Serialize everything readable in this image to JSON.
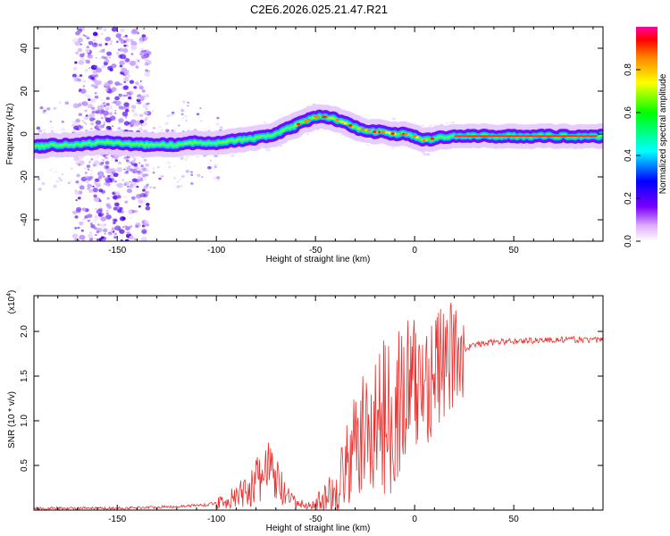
{
  "title": "C2E6.2026.025.21.47.R21",
  "chart_data": [
    {
      "type": "heatmap",
      "xlabel": "Height of straight line (km)",
      "ylabel": "Frequency (Hz)",
      "xlim": [
        -192,
        95
      ],
      "ylim": [
        -50,
        50
      ],
      "xticks": [
        "-150",
        "-100",
        "-50",
        "0",
        "50"
      ],
      "yticks": [
        "-40",
        "-20",
        "0",
        "20",
        "40"
      ],
      "colorbar": {
        "label": "Normalized spectral amplitude",
        "range": [
          0,
          1
        ],
        "ticks": [
          "0.0",
          "0.2",
          "0.4",
          "0.6",
          "0.8"
        ]
      },
      "ridge": {
        "x": [
          -192,
          -180,
          -170,
          -160,
          -150,
          -140,
          -130,
          -120,
          -110,
          -100,
          -90,
          -80,
          -70,
          -60,
          -55,
          -50,
          -45,
          -40,
          -35,
          -30,
          -25,
          -20,
          -15,
          -10,
          -5,
          0,
          5,
          10,
          20,
          40,
          60,
          80,
          95
        ],
        "y": [
          -6,
          -5,
          -5,
          -4,
          -4,
          -5,
          -5,
          -5,
          -4,
          -4,
          -3,
          -2,
          0,
          4,
          6,
          8,
          8,
          7,
          5,
          3,
          2,
          1,
          1,
          0,
          0,
          -1,
          -3,
          -2,
          -1,
          -1,
          -1,
          -1,
          -1
        ]
      },
      "scatter_cloud": {
        "x_range": [
          -172,
          -134
        ],
        "y_range": [
          -50,
          50
        ]
      }
    },
    {
      "type": "line",
      "xlabel": "Height of straight line (km)",
      "ylabel": "SNR (10 * v/v)",
      "scale_label": "(x10",
      "scale_exp": "4",
      "xlim": [
        -192,
        95
      ],
      "ylim": [
        0,
        2.4
      ],
      "xticks": [
        "-150",
        "-100",
        "-50",
        "0",
        "50"
      ],
      "yticks": [
        "0.5",
        "1.0",
        "1.5",
        "2.0"
      ],
      "series": [
        {
          "name": "SNR",
          "color": "#e8302e",
          "envelope": {
            "x": [
              -192,
              -150,
              -120,
              -105,
              -100,
              -90,
              -85,
              -80,
              -75,
              -70,
              -65,
              -60,
              -55,
              -50,
              -45,
              -40,
              -35,
              -30,
              -25,
              -20,
              -15,
              -10,
              -5,
              0,
              5,
              10,
              15,
              20,
              25,
              30,
              40,
              60,
              80,
              95
            ],
            "y": [
              0.02,
              0.02,
              0.04,
              0.06,
              0.08,
              0.14,
              0.22,
              0.3,
              0.45,
              0.35,
              0.15,
              0.08,
              0.05,
              0.06,
              0.12,
              0.22,
              0.45,
              0.7,
              0.85,
              0.95,
              1.05,
              1.15,
              1.25,
              1.35,
              1.45,
              1.55,
              1.65,
              1.72,
              1.8,
              1.85,
              1.88,
              1.9,
              1.91,
              1.9
            ]
          }
        }
      ]
    }
  ]
}
